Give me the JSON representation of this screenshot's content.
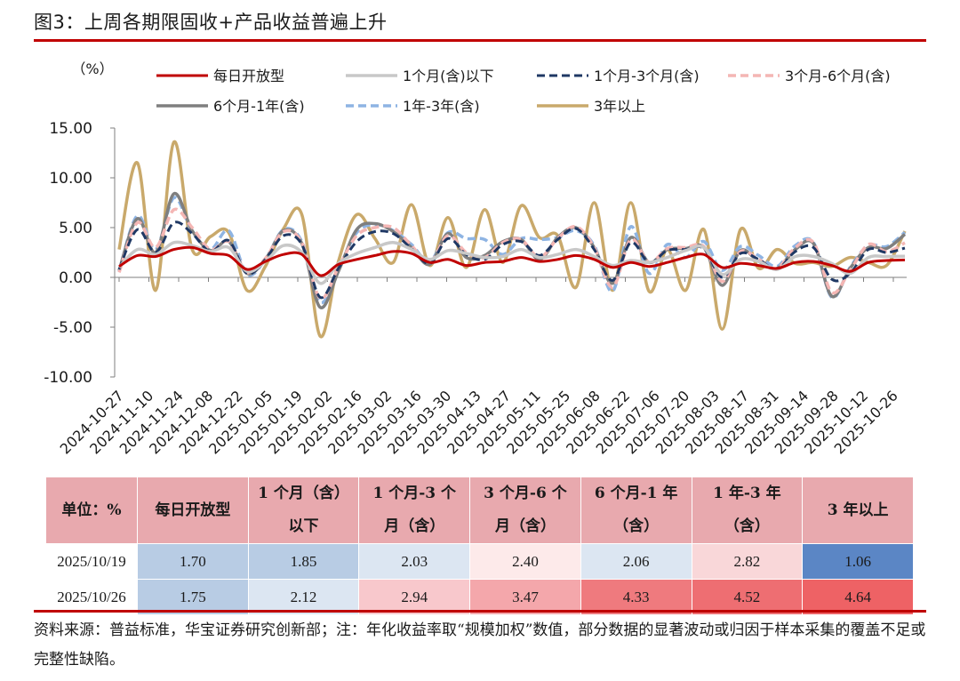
{
  "figure": {
    "title": "图3：上周各期限固收+产品收益普遍上升",
    "source_note": "资料来源：普益标准，华宝证券研究创新部；注：年化收益率取“规模加权”数值，部分数据的显著波动或归因于样本采集的覆盖不足或完整性缺陷。"
  },
  "chart_data": {
    "type": "line",
    "unit_label": "（%）",
    "ylim": [
      -10,
      15
    ],
    "yticks": [
      -10,
      -5,
      0,
      5,
      10,
      15
    ],
    "ytick_labels": [
      "-10.00",
      "-5.00",
      "0.00",
      "5.00",
      "10.00",
      "15.00"
    ],
    "x_tick_labels": [
      "2024-10-27",
      "2024-11-10",
      "2024-11-24",
      "2024-12-08",
      "2024-12-22",
      "2025-01-05",
      "2025-01-19",
      "2025-02-02",
      "2025-02-16",
      "2025-03-02",
      "2025-03-16",
      "2025-03-30",
      "2025-04-13",
      "2025-04-27",
      "2025-05-11",
      "2025-05-25",
      "2025-06-08",
      "2025-06-22",
      "2025-07-06",
      "2025-07-20",
      "2025-08-03",
      "2025-08-17",
      "2025-08-31",
      "2025-09-14",
      "2025-09-28",
      "2025-10-12",
      "2025-10-26"
    ],
    "series": [
      {
        "name": "每日开放型",
        "color": "#c00000",
        "dash": "solid",
        "width": 3,
        "values": [
          1.1,
          2.2,
          2.1,
          2.8,
          3.0,
          2.4,
          2.2,
          0.8,
          1.6,
          2.3,
          2.3,
          0.2,
          1.3,
          1.8,
          2.2,
          2.6,
          2.4,
          1.5,
          1.8,
          1.2,
          1.5,
          1.6,
          2.0,
          1.6,
          1.8,
          2.2,
          1.8,
          1.0,
          1.5,
          1.1,
          1.5,
          2.0,
          2.3,
          1.0,
          1.4,
          1.2,
          0.9,
          1.5,
          1.6,
          1.2,
          0.6,
          1.5,
          1.7,
          1.75
        ]
      },
      {
        "name": "1个月(含)以下",
        "color": "#c8c8c8",
        "dash": "solid",
        "width": 3.5,
        "values": [
          1.0,
          2.8,
          2.3,
          3.5,
          3.2,
          2.6,
          3.0,
          0.6,
          1.6,
          3.2,
          2.5,
          -0.6,
          1.4,
          2.4,
          3.0,
          3.5,
          2.8,
          1.8,
          2.7,
          2.4,
          2.0,
          2.1,
          2.8,
          2.0,
          2.3,
          2.8,
          2.1,
          1.2,
          1.7,
          1.5,
          2.0,
          2.7,
          3.0,
          0.3,
          1.8,
          1.6,
          0.8,
          2.1,
          2.1,
          1.4,
          0.4,
          2.0,
          2.1,
          2.12
        ]
      },
      {
        "name": "1个月-3个月(含)",
        "color": "#1f3864",
        "dash": "dash",
        "width": 3,
        "values": [
          0.8,
          4.8,
          2.5,
          5.5,
          4.4,
          2.6,
          3.7,
          0.4,
          1.8,
          4.2,
          3.3,
          -2.0,
          0.9,
          3.6,
          4.6,
          4.4,
          2.9,
          1.4,
          3.9,
          2.3,
          1.8,
          3.3,
          3.6,
          2.2,
          3.8,
          4.9,
          2.8,
          -0.3,
          3.5,
          1.5,
          2.7,
          2.8,
          2.9,
          0.0,
          2.4,
          1.8,
          0.8,
          2.6,
          3.0,
          -0.2,
          0.4,
          2.8,
          2.5,
          2.94
        ]
      },
      {
        "name": "3个月-6个月(含)",
        "color": "#f4b6b4",
        "dash": "dash",
        "width": 3.5,
        "values": [
          0.5,
          5.5,
          3.0,
          6.8,
          5.0,
          2.8,
          3.6,
          0.5,
          1.9,
          4.6,
          3.5,
          -2.1,
          1.0,
          4.2,
          5.0,
          5.0,
          3.2,
          1.5,
          4.2,
          2.5,
          2.0,
          3.5,
          3.8,
          2.0,
          3.9,
          5.1,
          3.0,
          -1.0,
          3.8,
          1.5,
          2.9,
          3.0,
          3.1,
          -0.4,
          2.6,
          1.8,
          0.9,
          3.0,
          3.5,
          -1.5,
          0.7,
          3.3,
          2.6,
          3.47
        ]
      },
      {
        "name": "6个月-1年(含)",
        "color": "#7f7f7f",
        "dash": "solid",
        "width": 3.5,
        "values": [
          0.7,
          5.9,
          2.5,
          8.4,
          4.7,
          2.7,
          3.6,
          0.4,
          1.8,
          4.7,
          3.4,
          -3.0,
          0.6,
          4.8,
          5.4,
          4.6,
          3.0,
          1.3,
          4.4,
          2.0,
          2.2,
          3.6,
          3.8,
          1.8,
          4.0,
          5.0,
          3.0,
          -0.6,
          4.0,
          1.5,
          2.8,
          2.9,
          3.0,
          -0.8,
          2.7,
          1.6,
          0.9,
          2.8,
          3.4,
          -1.9,
          0.9,
          3.0,
          2.9,
          4.33
        ]
      },
      {
        "name": "1年-3年(含)",
        "color": "#8eb4e3",
        "dash": "dash",
        "width": 3.5,
        "values": [
          0.6,
          6.2,
          2.8,
          8.0,
          4.6,
          2.8,
          4.7,
          0.3,
          1.8,
          4.8,
          3.6,
          -2.5,
          0.8,
          4.5,
          5.3,
          4.7,
          3.3,
          1.6,
          4.5,
          3.9,
          3.8,
          2.3,
          3.9,
          3.8,
          4.0,
          4.7,
          3.2,
          -1.4,
          5.1,
          0.4,
          3.3,
          2.0,
          3.6,
          0.7,
          3.1,
          2.2,
          1.1,
          3.2,
          3.5,
          -2.0,
          1.0,
          3.2,
          3.1,
          4.52
        ]
      },
      {
        "name": "3年以上",
        "color": "#c9a96b",
        "dash": "solid",
        "width": 3.5,
        "values": [
          2.8,
          11.5,
          -1.3,
          13.6,
          2.8,
          4.1,
          4.5,
          -1.3,
          1.1,
          4.9,
          6.3,
          -5.9,
          1.6,
          6.3,
          3.9,
          1.5,
          7.3,
          1.2,
          6.0,
          1.0,
          6.8,
          1.5,
          7.2,
          4.0,
          4.2,
          -1.0,
          7.5,
          -1.3,
          7.5,
          -1.4,
          2.8,
          -1.3,
          4.8,
          -5.2,
          4.8,
          0.9,
          2.8,
          1.4,
          1.5,
          1.1,
          2.0,
          1.5,
          1.2,
          4.64
        ]
      }
    ]
  },
  "table": {
    "header_unit": "单位：%",
    "headers": [
      {
        "line1": "每日开放型",
        "line2": ""
      },
      {
        "line1": "1 个月（含）",
        "line2": "以下"
      },
      {
        "line1": "1 个月-3 个",
        "line2": "月（含）"
      },
      {
        "line1": "3 个月-6 个",
        "line2": "月（含）"
      },
      {
        "line1": "6 个月-1 年",
        "line2": "（含）"
      },
      {
        "line1": "1 年-3 年",
        "line2": "（含）"
      },
      {
        "line1": "3 年以上",
        "line2": ""
      }
    ],
    "rows": [
      {
        "date": "2025/10/19",
        "values": [
          "1.70",
          "1.85",
          "2.03",
          "2.40",
          "2.06",
          "2.82",
          "1.06"
        ],
        "colors": [
          "#b8cce4",
          "#b8cce4",
          "#dce6f2",
          "#fdeaea",
          "#dce6f2",
          "#f9d7d9",
          "#5b86c5"
        ]
      },
      {
        "date": "2025/10/26",
        "values": [
          "1.75",
          "2.12",
          "2.94",
          "3.47",
          "4.33",
          "4.52",
          "4.64"
        ],
        "colors": [
          "#b8cce4",
          "#dce6f2",
          "#f8c8cc",
          "#f4a7ab",
          "#ef7a7e",
          "#ee6e72",
          "#ee6265"
        ]
      }
    ]
  }
}
